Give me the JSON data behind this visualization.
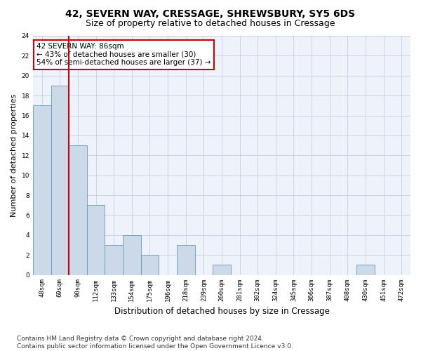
{
  "title1": "42, SEVERN WAY, CRESSAGE, SHREWSBURY, SY5 6DS",
  "title2": "Size of property relative to detached houses in Cressage",
  "xlabel": "Distribution of detached houses by size in Cressage",
  "ylabel": "Number of detached properties",
  "categories": [
    "48sqm",
    "69sqm",
    "90sqm",
    "112sqm",
    "133sqm",
    "154sqm",
    "175sqm",
    "196sqm",
    "218sqm",
    "239sqm",
    "260sqm",
    "281sqm",
    "302sqm",
    "324sqm",
    "345sqm",
    "366sqm",
    "387sqm",
    "408sqm",
    "430sqm",
    "451sqm",
    "472sqm"
  ],
  "values": [
    17,
    19,
    13,
    7,
    3,
    4,
    2,
    0,
    3,
    0,
    1,
    0,
    0,
    0,
    0,
    0,
    0,
    0,
    1,
    0,
    0
  ],
  "bar_color": "#ccd9e8",
  "bar_edge_color": "#6699bb",
  "grid_color": "#c8d4e4",
  "background_color": "#eef2fa",
  "marker_line_color": "#cc0000",
  "annotation_text": "42 SEVERN WAY: 86sqm\n← 43% of detached houses are smaller (30)\n54% of semi-detached houses are larger (37) →",
  "annotation_box_color": "#cc0000",
  "ylim": [
    0,
    24
  ],
  "yticks": [
    0,
    2,
    4,
    6,
    8,
    10,
    12,
    14,
    16,
    18,
    20,
    22,
    24
  ],
  "footer": "Contains HM Land Registry data © Crown copyright and database right 2024.\nContains public sector information licensed under the Open Government Licence v3.0.",
  "title1_fontsize": 10,
  "title2_fontsize": 9,
  "xlabel_fontsize": 8.5,
  "ylabel_fontsize": 8,
  "tick_fontsize": 6.5,
  "footer_fontsize": 6.5,
  "annotation_fontsize": 7.5
}
